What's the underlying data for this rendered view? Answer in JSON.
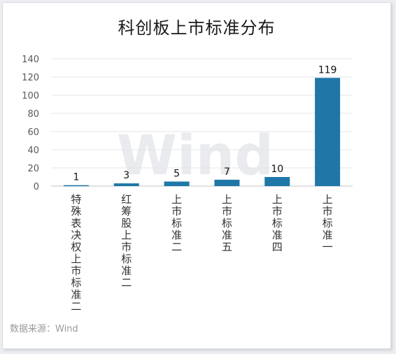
{
  "chart_data": {
    "type": "bar",
    "title": "科创板上市标准分布",
    "categories": [
      "特殊表决权上市标准二",
      "红筹股上市标准二",
      "上市标准二",
      "上市标准五",
      "上市标准四",
      "上市标准一"
    ],
    "values": [
      1,
      3,
      5,
      7,
      10,
      119
    ],
    "data_labels": [
      "1",
      "3",
      "5",
      "7",
      "10",
      "119"
    ],
    "yticks": [
      "0",
      "20",
      "40",
      "60",
      "80",
      "100",
      "120",
      "140"
    ],
    "ylim": [
      0,
      140
    ],
    "grid": true,
    "bar_color": "#1f77a8",
    "watermark": "Wind",
    "source": "数据来源：Wind"
  }
}
